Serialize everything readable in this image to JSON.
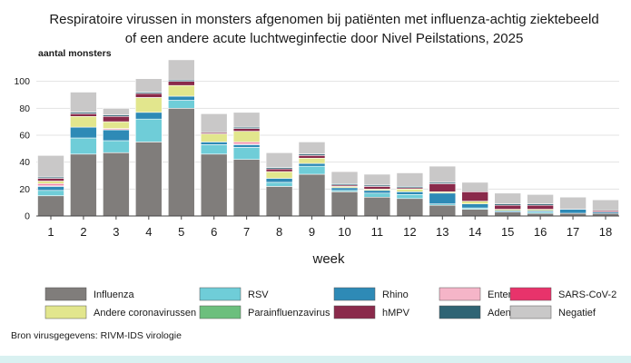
{
  "chart_data": {
    "type": "bar",
    "stacked": true,
    "title_lines": [
      "Respiratoire virussen in monsters afgenomen bij patiënten met influenza-achtig ziektebeeld",
      "of een andere acute luchtweginfectie door Nivel Peilstations, 2025"
    ],
    "ylabel": "aantal monsters",
    "xlabel": "week",
    "ylim": [
      0,
      120
    ],
    "yticks": [
      0,
      20,
      40,
      60,
      80,
      100
    ],
    "grid": true,
    "legend_position": "bottom",
    "categories": [
      "1",
      "2",
      "3",
      "4",
      "5",
      "6",
      "7",
      "8",
      "9",
      "10",
      "11",
      "12",
      "13",
      "14",
      "15",
      "16",
      "17",
      "18"
    ],
    "series": [
      {
        "name": "Influenza",
        "color": "#807d7b",
        "values": [
          15,
          46,
          47,
          55,
          80,
          46,
          42,
          22,
          31,
          18,
          14,
          13,
          8,
          5,
          3,
          2,
          2,
          2
        ]
      },
      {
        "name": "RSV",
        "color": "#6fcdd8",
        "values": [
          4,
          12,
          9,
          17,
          6,
          7,
          9,
          3,
          6,
          1,
          3,
          3,
          1,
          1,
          0,
          1,
          0,
          0
        ]
      },
      {
        "name": "Rhino",
        "color": "#2e8ab6",
        "values": [
          3,
          8,
          8,
          5,
          3,
          2,
          2,
          3,
          2,
          2,
          2,
          2,
          8,
          3,
          1,
          1,
          3,
          1
        ]
      },
      {
        "name": "Entero",
        "color": "#f5b5c8",
        "values": [
          1,
          0,
          1,
          0,
          0,
          0,
          1,
          0,
          0,
          0,
          0,
          0,
          0,
          0,
          0,
          0,
          0,
          0
        ]
      },
      {
        "name": "SARS-CoV-2",
        "color": "#e8336b",
        "values": [
          1,
          0,
          0,
          0,
          0,
          0,
          1,
          0,
          0,
          0,
          0,
          0,
          0,
          0,
          0,
          0,
          0,
          0
        ]
      },
      {
        "name": "Andere coronavirussen",
        "color": "#e2e68d",
        "values": [
          2,
          8,
          5,
          11,
          8,
          6,
          8,
          5,
          4,
          1,
          1,
          2,
          1,
          2,
          1,
          1,
          0,
          0
        ]
      },
      {
        "name": "Parainfluenzavirus",
        "color": "#6cbf7d",
        "values": [
          0,
          0,
          0,
          0,
          0,
          0,
          0,
          0,
          0,
          0,
          0,
          0,
          0,
          0,
          0,
          0,
          0,
          0
        ]
      },
      {
        "name": "hMPV",
        "color": "#8a2a4b",
        "values": [
          2,
          2,
          4,
          3,
          3,
          1,
          2,
          2,
          2,
          1,
          2,
          1,
          6,
          7,
          3,
          3,
          0,
          1
        ]
      },
      {
        "name": "Adeno",
        "color": "#2f6474",
        "values": [
          1,
          1,
          1,
          1,
          1,
          0,
          1,
          1,
          1,
          1,
          1,
          1,
          1,
          0,
          1,
          1,
          0,
          0
        ]
      },
      {
        "name": "Negatief",
        "color": "#c9c8c8",
        "values": [
          16,
          15,
          5,
          10,
          15,
          14,
          11,
          11,
          9,
          9,
          8,
          10,
          12,
          7,
          8,
          7,
          9,
          8
        ]
      }
    ],
    "legend_order": [
      [
        "Influenza",
        "RSV",
        "Rhino",
        "Entero",
        "SARS-CoV-2"
      ],
      [
        "Andere coronavirussen",
        "Parainfluenzavirus",
        "hMPV",
        "Adeno",
        "Negatief"
      ]
    ]
  },
  "source_text": "Bron virusgegevens: RIVM-IDS virologie"
}
